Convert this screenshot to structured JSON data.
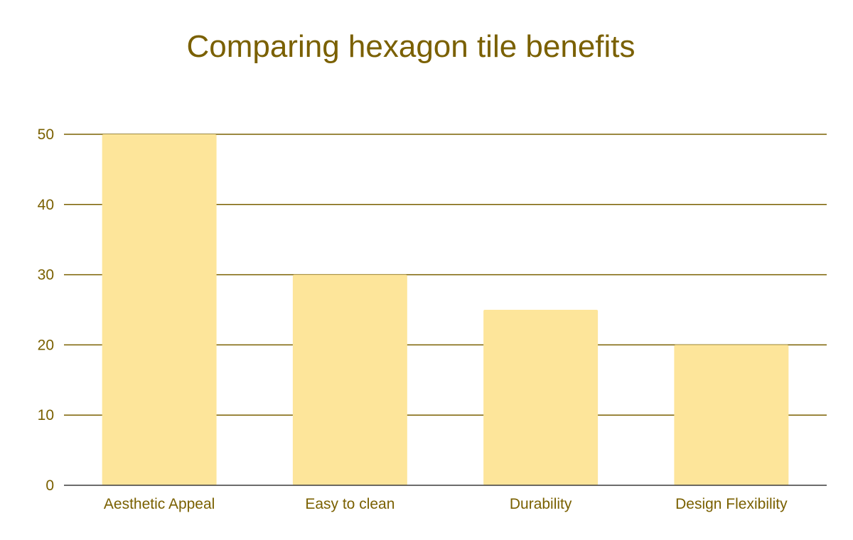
{
  "colors": {
    "text": "#7a6000",
    "gridline": "#7a6000",
    "baseline": "#3b3b3b",
    "bar": "#fde59a",
    "background": "#ffffff"
  },
  "chart_data": {
    "type": "bar",
    "title": "Comparing hexagon tile benefits",
    "xlabel": "",
    "ylabel": "",
    "categories": [
      "Aesthetic Appeal",
      "Easy to clean",
      "Durability",
      "Design Flexibility"
    ],
    "values": [
      50,
      30,
      25,
      20
    ],
    "ylim": [
      0,
      50
    ],
    "yticks": [
      0,
      10,
      20,
      30,
      40,
      50
    ],
    "grid": true,
    "legend": "none"
  }
}
